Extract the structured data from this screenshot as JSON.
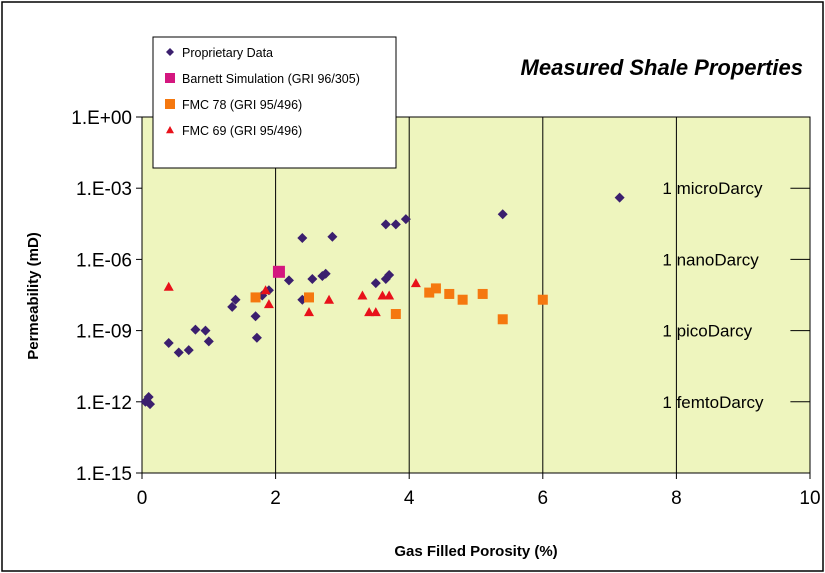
{
  "chart_data": {
    "type": "scatter",
    "title": "Measured Shale Properties",
    "xlabel": "Gas Filled Porosity (%)",
    "ylabel": "Permeability (mD)",
    "xlim": [
      0,
      10
    ],
    "ylim_exponent": [
      -15,
      0
    ],
    "y_scale": "log",
    "x_ticks": [
      "0",
      "2",
      "4",
      "6",
      "8",
      "10"
    ],
    "y_ticks": [
      {
        "exp": 0,
        "label": "1.E+00"
      },
      {
        "exp": -3,
        "label": "1.E-03"
      },
      {
        "exp": -6,
        "label": "1.E-06"
      },
      {
        "exp": -9,
        "label": "1.E-09"
      },
      {
        "exp": -12,
        "label": "1.E-12"
      },
      {
        "exp": -15,
        "label": "1.E-15"
      }
    ],
    "grid": "vertical",
    "plot_background": "#eef5be",
    "legend_position": "top-left",
    "annotations": [
      {
        "text": "1 microDarcy",
        "x": 8,
        "y_exp": -3
      },
      {
        "text": "1 nanoDarcy",
        "x": 8,
        "y_exp": -6
      },
      {
        "text": "1 picoDarcy",
        "x": 8,
        "y_exp": -9
      },
      {
        "text": "1 femtoDarcy",
        "x": 8,
        "y_exp": -12
      }
    ],
    "series": [
      {
        "name": "Proprietary Data",
        "marker": "diamond",
        "color": "#3b1f6e",
        "points": [
          [
            0.05,
            1e-12
          ],
          [
            0.1,
            1.6e-12
          ],
          [
            0.12,
            8e-13
          ],
          [
            0.4,
            3e-10
          ],
          [
            0.55,
            1.2e-10
          ],
          [
            0.7,
            1.5e-10
          ],
          [
            0.8,
            1.1e-09
          ],
          [
            0.95,
            1e-09
          ],
          [
            1.0,
            3.5e-10
          ],
          [
            1.35,
            1e-08
          ],
          [
            1.4,
            2e-08
          ],
          [
            1.7,
            4e-09
          ],
          [
            1.72,
            5e-10
          ],
          [
            1.8,
            3e-08
          ],
          [
            1.9,
            5e-08
          ],
          [
            2.2,
            1.3e-07
          ],
          [
            2.4,
            2e-08
          ],
          [
            2.4,
            8e-06
          ],
          [
            2.55,
            1.5e-07
          ],
          [
            2.7,
            2e-07
          ],
          [
            2.75,
            2.5e-07
          ],
          [
            2.85,
            9e-06
          ],
          [
            3.5,
            1e-07
          ],
          [
            3.65,
            1.5e-07
          ],
          [
            3.65,
            3e-05
          ],
          [
            3.7,
            2.2e-07
          ],
          [
            3.8,
            3e-05
          ],
          [
            3.95,
            5e-05
          ],
          [
            5.4,
            8e-05
          ],
          [
            7.15,
            0.0004
          ]
        ]
      },
      {
        "name": "Barnett Simulation (GRI 96/305)",
        "marker": "square",
        "color": "#d4177f",
        "points": [
          [
            2.05,
            3e-07
          ]
        ]
      },
      {
        "name": "FMC 78 (GRI 95/496)",
        "marker": "square",
        "color": "#f5780f",
        "points": [
          [
            1.7,
            2.5e-08
          ],
          [
            2.5,
            2.5e-08
          ],
          [
            3.8,
            5e-09
          ],
          [
            4.3,
            4e-08
          ],
          [
            4.4,
            6e-08
          ],
          [
            4.6,
            3.5e-08
          ],
          [
            4.8,
            2e-08
          ],
          [
            5.1,
            3.5e-08
          ],
          [
            5.4,
            3e-09
          ],
          [
            6.0,
            2e-08
          ]
        ]
      },
      {
        "name": "FMC 69 (GRI 95/496)",
        "marker": "triangle",
        "color": "#e8111a",
        "points": [
          [
            0.4,
            7e-08
          ],
          [
            1.85,
            5e-08
          ],
          [
            1.9,
            1.3e-08
          ],
          [
            2.5,
            6e-09
          ],
          [
            2.8,
            2e-08
          ],
          [
            3.3,
            3e-08
          ],
          [
            3.4,
            6e-09
          ],
          [
            3.5,
            6e-09
          ],
          [
            3.6,
            3e-08
          ],
          [
            3.7,
            3e-08
          ],
          [
            4.1,
            1e-07
          ]
        ]
      }
    ]
  }
}
